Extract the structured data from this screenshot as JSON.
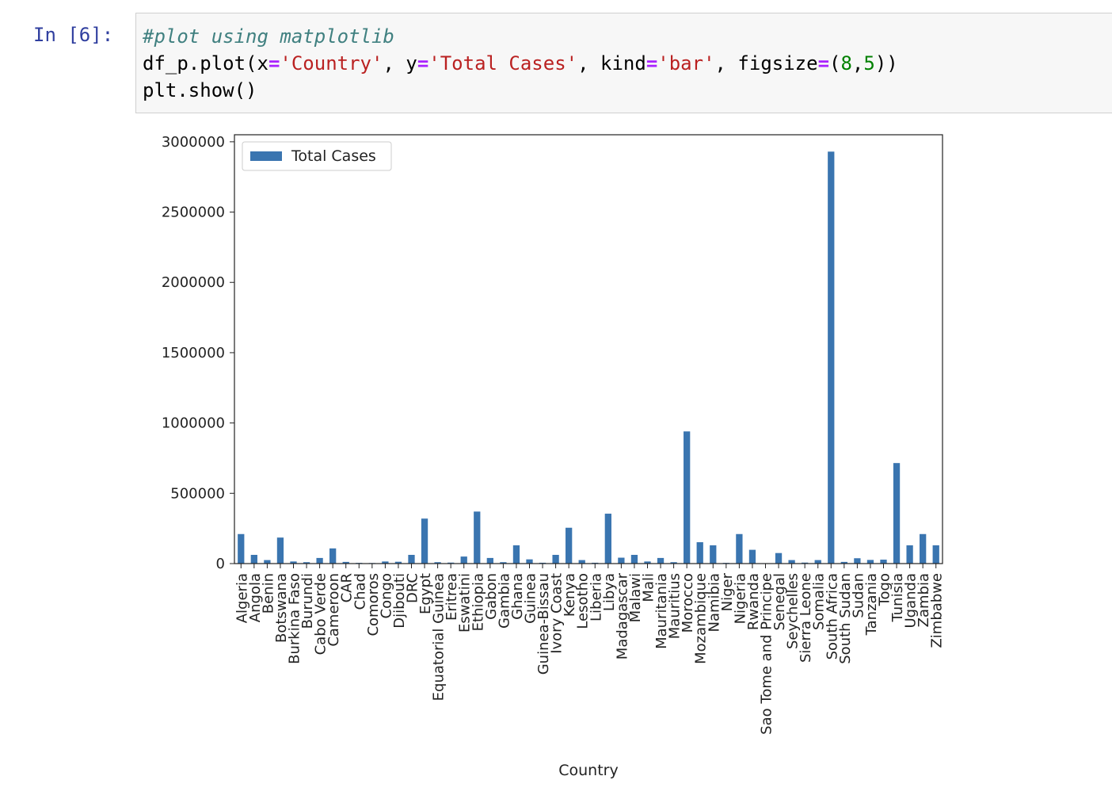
{
  "cell": {
    "prompt": "In [6]:",
    "code": {
      "comment": "#plot using matplotlib",
      "l2": [
        "df_p.plot(x",
        "=",
        "'Country'",
        ", y",
        "=",
        "'Total Cases'",
        ", kind",
        "=",
        "'bar'",
        ", figsize",
        "=",
        "(",
        "8",
        ",",
        "5",
        "))"
      ],
      "l3": "plt.show()"
    }
  },
  "chart_data": {
    "type": "bar",
    "xlabel": "Country",
    "ylabel": "",
    "ylim": [
      0,
      3050000
    ],
    "yticks": [
      0,
      500000,
      1000000,
      1500000,
      2000000,
      2500000,
      3000000
    ],
    "legend": {
      "position": "top-left"
    },
    "color": "#3a75b0",
    "categories": [
      "Algeria",
      "Angola",
      "Benin",
      "Botswana",
      "Burkina Faso",
      "Burundi",
      "Cabo Verde",
      "Cameroon",
      "CAR",
      "Chad",
      "Comoros",
      "Congo",
      "Djibouti",
      "DRC",
      "Egypt",
      "Equatorial Guinea",
      "Eritrea",
      "Eswatini",
      "Ethiopia",
      "Gabon",
      "Gambia",
      "Ghana",
      "Guinea",
      "Guinea-Bissau",
      "Ivory Coast",
      "Kenya",
      "Lesotho",
      "Liberia",
      "Libya",
      "Madagascar",
      "Malawi",
      "Mali",
      "Mauritania",
      "Mauritius",
      "Morocco",
      "Mozambique",
      "Namibia",
      "Niger",
      "Nigeria",
      "Rwanda",
      "Sao Tome and Principe",
      "Senegal",
      "Seychelles",
      "Sierra Leone",
      "Somalia",
      "South Africa",
      "South Sudan",
      "Sudan",
      "Tanzania",
      "Togo",
      "Tunisia",
      "Uganda",
      "Zambia",
      "Zimbabwe"
    ],
    "series": [
      {
        "name": "Total Cases",
        "values": [
          210000,
          62000,
          25000,
          185000,
          15000,
          10000,
          40000,
          108000,
          12000,
          5000,
          4000,
          15000,
          13000,
          62000,
          320000,
          10000,
          7000,
          50000,
          370000,
          40000,
          10000,
          130000,
          30000,
          6000,
          62000,
          255000,
          25000,
          6000,
          355000,
          42000,
          62000,
          15000,
          40000,
          10000,
          940000,
          152000,
          130000,
          5000,
          210000,
          98000,
          3000,
          75000,
          25000,
          7000,
          25000,
          2930000,
          12000,
          38000,
          26000,
          28000,
          715000,
          130000,
          210000,
          130000
        ]
      }
    ]
  }
}
